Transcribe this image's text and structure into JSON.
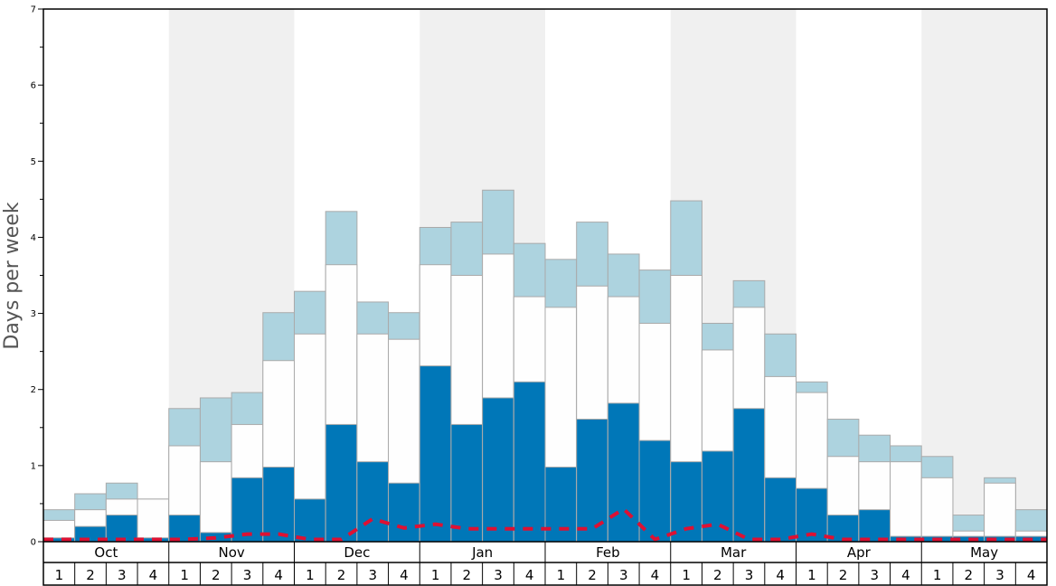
{
  "chart_data": {
    "type": "bar",
    "ylabel": "Days per week",
    "ylim": [
      0,
      7
    ],
    "yticks": [
      "0",
      "1",
      "2",
      "3",
      "4",
      "5",
      "6",
      "7"
    ],
    "months": [
      "Oct",
      "Nov",
      "Dec",
      "Jan",
      "Feb",
      "Mar",
      "Apr",
      "May"
    ],
    "weeks": [
      "1",
      "2",
      "3",
      "4"
    ],
    "shaded_months": [
      "Nov",
      "Jan",
      "Mar",
      "May"
    ],
    "series": [
      {
        "values": [
          0.05,
          0.2,
          0.35,
          0.05,
          0.35,
          0.12,
          0.84,
          0.98,
          0.56,
          1.54,
          1.05,
          0.77,
          2.31,
          1.54,
          1.89,
          2.1,
          0.98,
          1.61,
          1.82,
          1.33,
          1.05,
          1.19,
          1.75,
          0.84,
          0.7,
          0.35,
          0.42,
          0.07,
          0.07,
          0.07,
          0.07,
          0.07
        ]
      },
      {
        "values": [
          0.28,
          0.42,
          0.56,
          0.56,
          1.26,
          1.05,
          1.54,
          2.38,
          2.73,
          3.64,
          2.73,
          2.66,
          3.64,
          3.5,
          3.78,
          3.22,
          3.08,
          3.36,
          3.22,
          2.87,
          3.5,
          2.52,
          3.08,
          2.17,
          1.96,
          1.12,
          1.05,
          1.05,
          0.84,
          0.14,
          0.77,
          0.14
        ]
      },
      {
        "values": [
          0.42,
          0.63,
          0.77,
          0.56,
          1.75,
          1.89,
          1.96,
          3.01,
          3.29,
          4.34,
          3.15,
          3.01,
          4.13,
          4.2,
          4.62,
          3.92,
          3.71,
          4.2,
          3.78,
          3.57,
          4.48,
          2.87,
          3.43,
          2.73,
          2.1,
          1.61,
          1.4,
          1.26,
          1.12,
          0.35,
          0.84,
          0.42
        ]
      },
      {
        "values": [
          0.03,
          0.03,
          0.03,
          0.03,
          0.03,
          0.05,
          0.1,
          0.1,
          0.03,
          0.03,
          0.3,
          0.18,
          0.23,
          0.17,
          0.17,
          0.17,
          0.17,
          0.17,
          0.43,
          0.03,
          0.17,
          0.23,
          0.03,
          0.03,
          0.1,
          0.03,
          0.03,
          0.03,
          0.03,
          0.03,
          0.03,
          0.03
        ]
      }
    ],
    "colors": {
      "outer": "#add3df",
      "middle": "#fefefe",
      "inner": "#0077b8",
      "line": "#dd1133",
      "shade": "#f0f0f0",
      "bar_stroke": "#aaaaaa"
    },
    "grid": false
  }
}
